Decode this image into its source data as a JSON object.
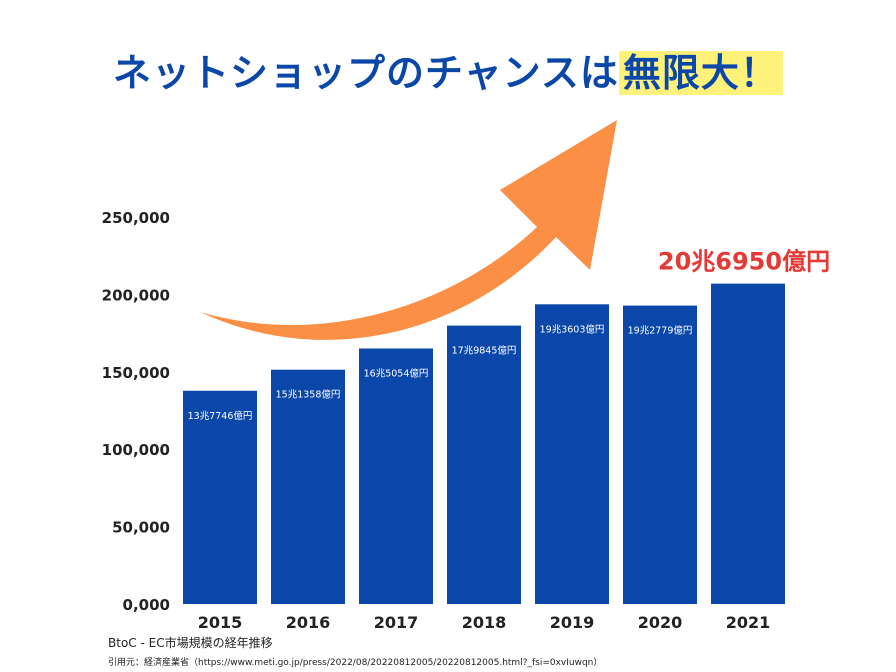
{
  "header": {
    "title_main": "ネットショップのチャンスは",
    "title_highlight": "無限大！"
  },
  "chart_data": {
    "type": "bar",
    "categories": [
      "2015",
      "2016",
      "2017",
      "2018",
      "2019",
      "2020",
      "2021"
    ],
    "values": [
      137746,
      151358,
      165054,
      179845,
      193603,
      192779,
      206950
    ],
    "data_labels": [
      "13兆7746億円",
      "15兆1358億円",
      "16兆5054億円",
      "17兆9845億円",
      "19兆3603億円",
      "19兆2779億円",
      "20兆6950億円"
    ],
    "ylim": [
      0,
      250000
    ],
    "yticks": [
      0,
      50000,
      100000,
      150000,
      200000,
      250000
    ],
    "ytick_labels": [
      "0,000",
      "50,000",
      "100,000",
      "150,000",
      "200,000",
      "250,000"
    ],
    "grid": false,
    "legend": "none",
    "colors": {
      "bar": "#0a47a9",
      "bar_label": "#ffffff",
      "highlight_label": "#e53935",
      "arrow": "#fa8f45",
      "axis_text": "#222222"
    }
  },
  "caption": "BtoC - EC市場規模の経年推移",
  "source": "引用元：経済産業省（https://www.meti.go.jp/press/2022/08/20220812005/20220812005.html?_fsi=0xvIuwqn）"
}
